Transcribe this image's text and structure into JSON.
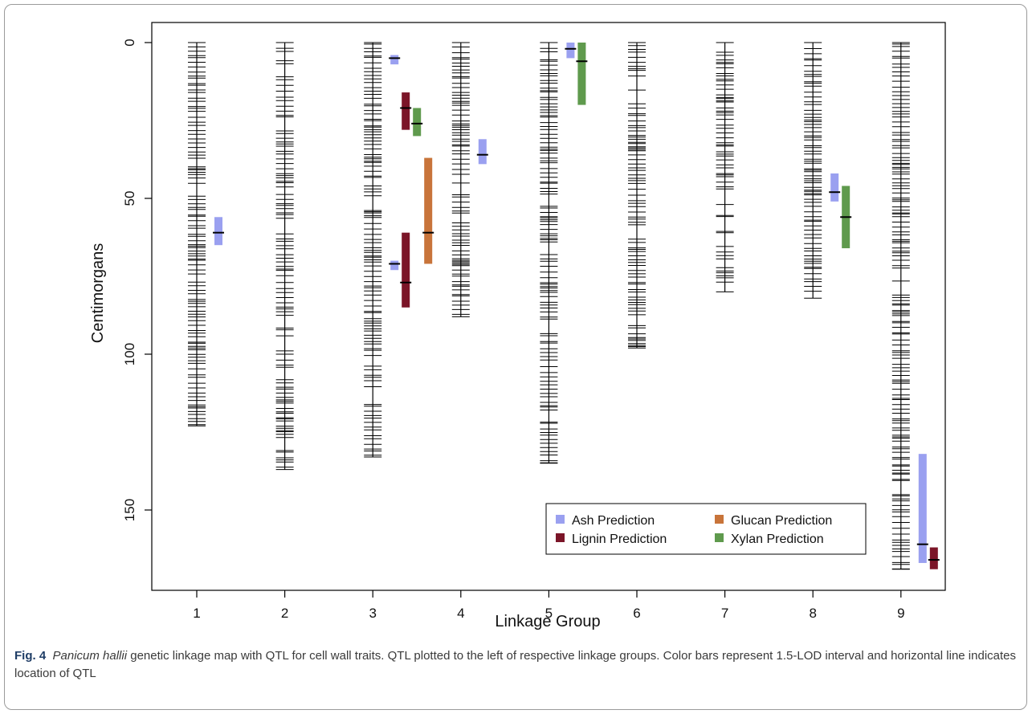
{
  "caption": {
    "label": "Fig. 4",
    "species": "Panicum hallii",
    "text": " genetic linkage map with QTL for cell wall traits. QTL plotted to the left of respective linkage groups. Color bars represent 1.5-LOD interval and horizontal line indicates location of QTL"
  },
  "colors": {
    "ash": "#9aa0f0",
    "lignin": "#7b1528",
    "glucan": "#c8743a",
    "xylan": "#5f9a4d",
    "marker": "#000000"
  },
  "chart_data": {
    "type": "linkage-map",
    "xlabel": "Linkage Group",
    "ylabel": "Centimorgans",
    "x_ticks": [
      1,
      2,
      3,
      4,
      5,
      6,
      7,
      8,
      9
    ],
    "y_ticks": [
      0,
      50,
      100,
      150
    ],
    "ylim": [
      0,
      175
    ],
    "y_inverted": true,
    "legend": {
      "position": "bottom-right",
      "entries": [
        {
          "label": "Ash Prediction",
          "color_key": "ash"
        },
        {
          "label": "Glucan Prediction",
          "color_key": "glucan"
        },
        {
          "label": "Lignin Prediction",
          "color_key": "lignin"
        },
        {
          "label": "Xylan Prediction",
          "color_key": "xylan"
        }
      ]
    },
    "linkage_groups": [
      {
        "group": 1,
        "length": 123
      },
      {
        "group": 2,
        "length": 137
      },
      {
        "group": 3,
        "length": 133
      },
      {
        "group": 4,
        "length": 88
      },
      {
        "group": 5,
        "length": 135
      },
      {
        "group": 6,
        "length": 98
      },
      {
        "group": 7,
        "length": 80
      },
      {
        "group": 8,
        "length": 82
      },
      {
        "group": 9,
        "length": 169
      }
    ],
    "qtl": [
      {
        "group": 1,
        "trait": "ash",
        "start": 56,
        "end": 65,
        "peak": 61
      },
      {
        "group": 3,
        "trait": "ash",
        "start": 4,
        "end": 7,
        "peak": 5
      },
      {
        "group": 3,
        "trait": "lignin",
        "start": 16,
        "end": 28,
        "peak": 21
      },
      {
        "group": 3,
        "trait": "xylan",
        "start": 21,
        "end": 30,
        "peak": 26
      },
      {
        "group": 3,
        "trait": "glucan",
        "start": 37,
        "end": 71,
        "peak": 61
      },
      {
        "group": 3,
        "trait": "ash",
        "start": 70,
        "end": 73,
        "peak": 71
      },
      {
        "group": 3,
        "trait": "lignin",
        "start": 61,
        "end": 85,
        "peak": 77
      },
      {
        "group": 4,
        "trait": "ash",
        "start": 31,
        "end": 39,
        "peak": 36
      },
      {
        "group": 5,
        "trait": "ash",
        "start": 0,
        "end": 5,
        "peak": 2
      },
      {
        "group": 5,
        "trait": "xylan",
        "start": 0,
        "end": 20,
        "peak": 6
      },
      {
        "group": 8,
        "trait": "ash",
        "start": 42,
        "end": 51,
        "peak": 48
      },
      {
        "group": 8,
        "trait": "xylan",
        "start": 46,
        "end": 66,
        "peak": 56
      },
      {
        "group": 9,
        "trait": "ash",
        "start": 132,
        "end": 167,
        "peak": 161
      },
      {
        "group": 9,
        "trait": "lignin",
        "start": 162,
        "end": 169,
        "peak": 166
      }
    ]
  }
}
